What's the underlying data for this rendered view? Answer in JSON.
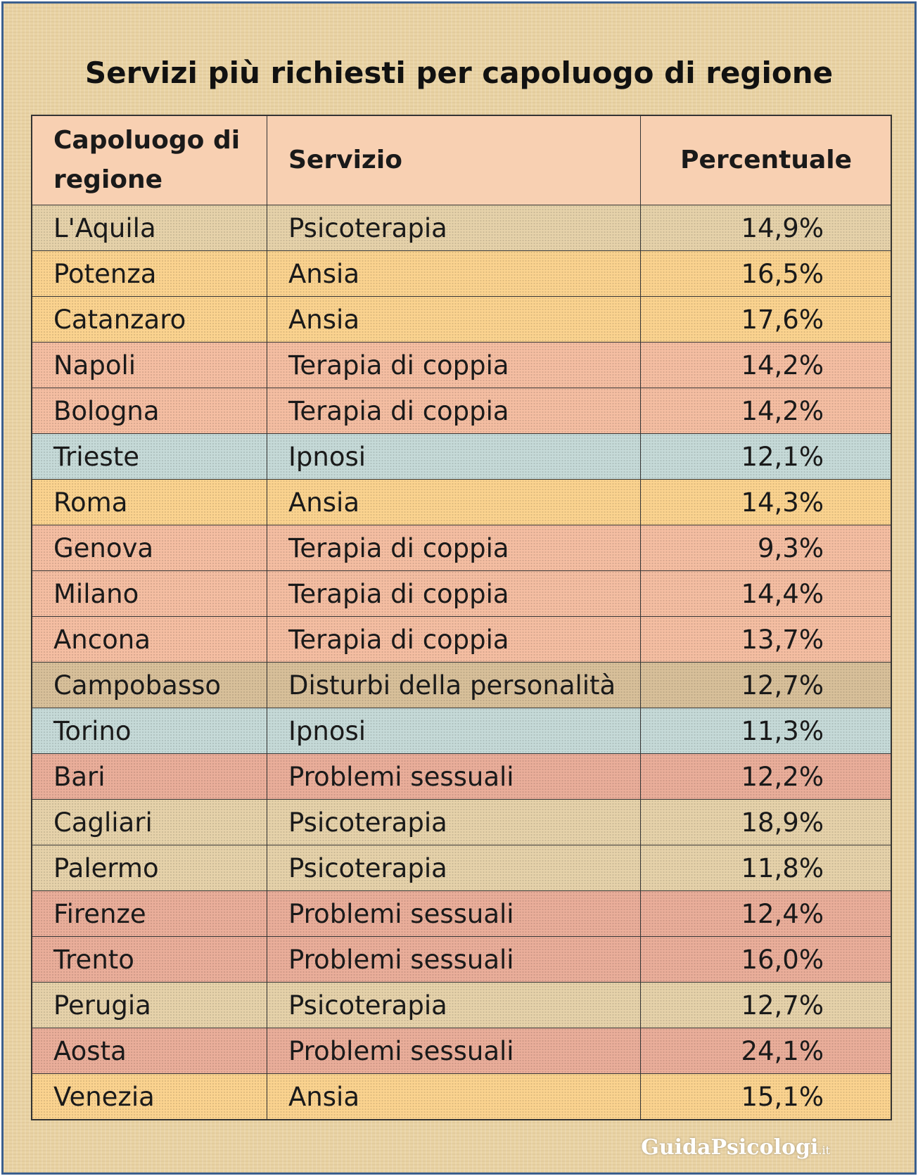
{
  "title": "Servizi più richiesti per capoluogo di regione",
  "table": {
    "headers": [
      "Capoluogo di regione",
      "Servizio",
      "Percentuale"
    ],
    "rows": [
      {
        "cells": [
          "L'Aquila",
          "Psicoterapia",
          "14,9%"
        ],
        "color": "#e6d2aa"
      },
      {
        "cells": [
          "Potenza",
          "Ansia",
          "16,5%"
        ],
        "color": "#fbd38f"
      },
      {
        "cells": [
          "Catanzaro",
          "Ansia",
          "17,6%"
        ],
        "color": "#fbd38f"
      },
      {
        "cells": [
          "Napoli",
          "Terapia di coppia",
          "14,2%"
        ],
        "color": "#f5bea2"
      },
      {
        "cells": [
          "Bologna",
          "Terapia di coppia",
          "14,2%"
        ],
        "color": "#f5bea2"
      },
      {
        "cells": [
          "Trieste",
          "Ipnosi",
          "12,1%"
        ],
        "color": "#c6dad8"
      },
      {
        "cells": [
          "Roma",
          "Ansia",
          "14,3%"
        ],
        "color": "#fbd38f"
      },
      {
        "cells": [
          "Genova",
          "Terapia di coppia",
          "9,3%"
        ],
        "color": "#f5bea2"
      },
      {
        "cells": [
          "Milano",
          "Terapia di coppia",
          "14,4%"
        ],
        "color": "#f5bea2"
      },
      {
        "cells": [
          "Ancona",
          "Terapia di coppia",
          "13,7%"
        ],
        "color": "#f5bea2"
      },
      {
        "cells": [
          "Campobasso",
          "Disturbi della personalità",
          "12,7%"
        ],
        "color": "#d8c09a"
      },
      {
        "cells": [
          "Torino",
          "Ipnosi",
          "11,3%"
        ],
        "color": "#c6dad8"
      },
      {
        "cells": [
          "Bari",
          "Problemi sessuali",
          "12,2%"
        ],
        "color": "#eaae9a"
      },
      {
        "cells": [
          "Cagliari",
          "Psicoterapia",
          "18,9%"
        ],
        "color": "#e6d2aa"
      },
      {
        "cells": [
          "Palermo",
          "Psicoterapia",
          "11,8%"
        ],
        "color": "#e6d2aa"
      },
      {
        "cells": [
          "Firenze",
          "Problemi sessuali",
          "12,4%"
        ],
        "color": "#eaae9a"
      },
      {
        "cells": [
          "Trento",
          "Problemi sessuali",
          "16,0%"
        ],
        "color": "#eaae9a"
      },
      {
        "cells": [
          "Perugia",
          "Psicoterapia",
          "12,7%"
        ],
        "color": "#e6d2aa"
      },
      {
        "cells": [
          "Aosta",
          "Problemi sessuali",
          "24,1%"
        ],
        "color": "#eaae9a"
      },
      {
        "cells": [
          "Venezia",
          "Ansia",
          "15,1%"
        ],
        "color": "#fbd38f"
      }
    ]
  },
  "watermark": {
    "name": "GuidaPsicologi",
    "suffix": ".it"
  }
}
